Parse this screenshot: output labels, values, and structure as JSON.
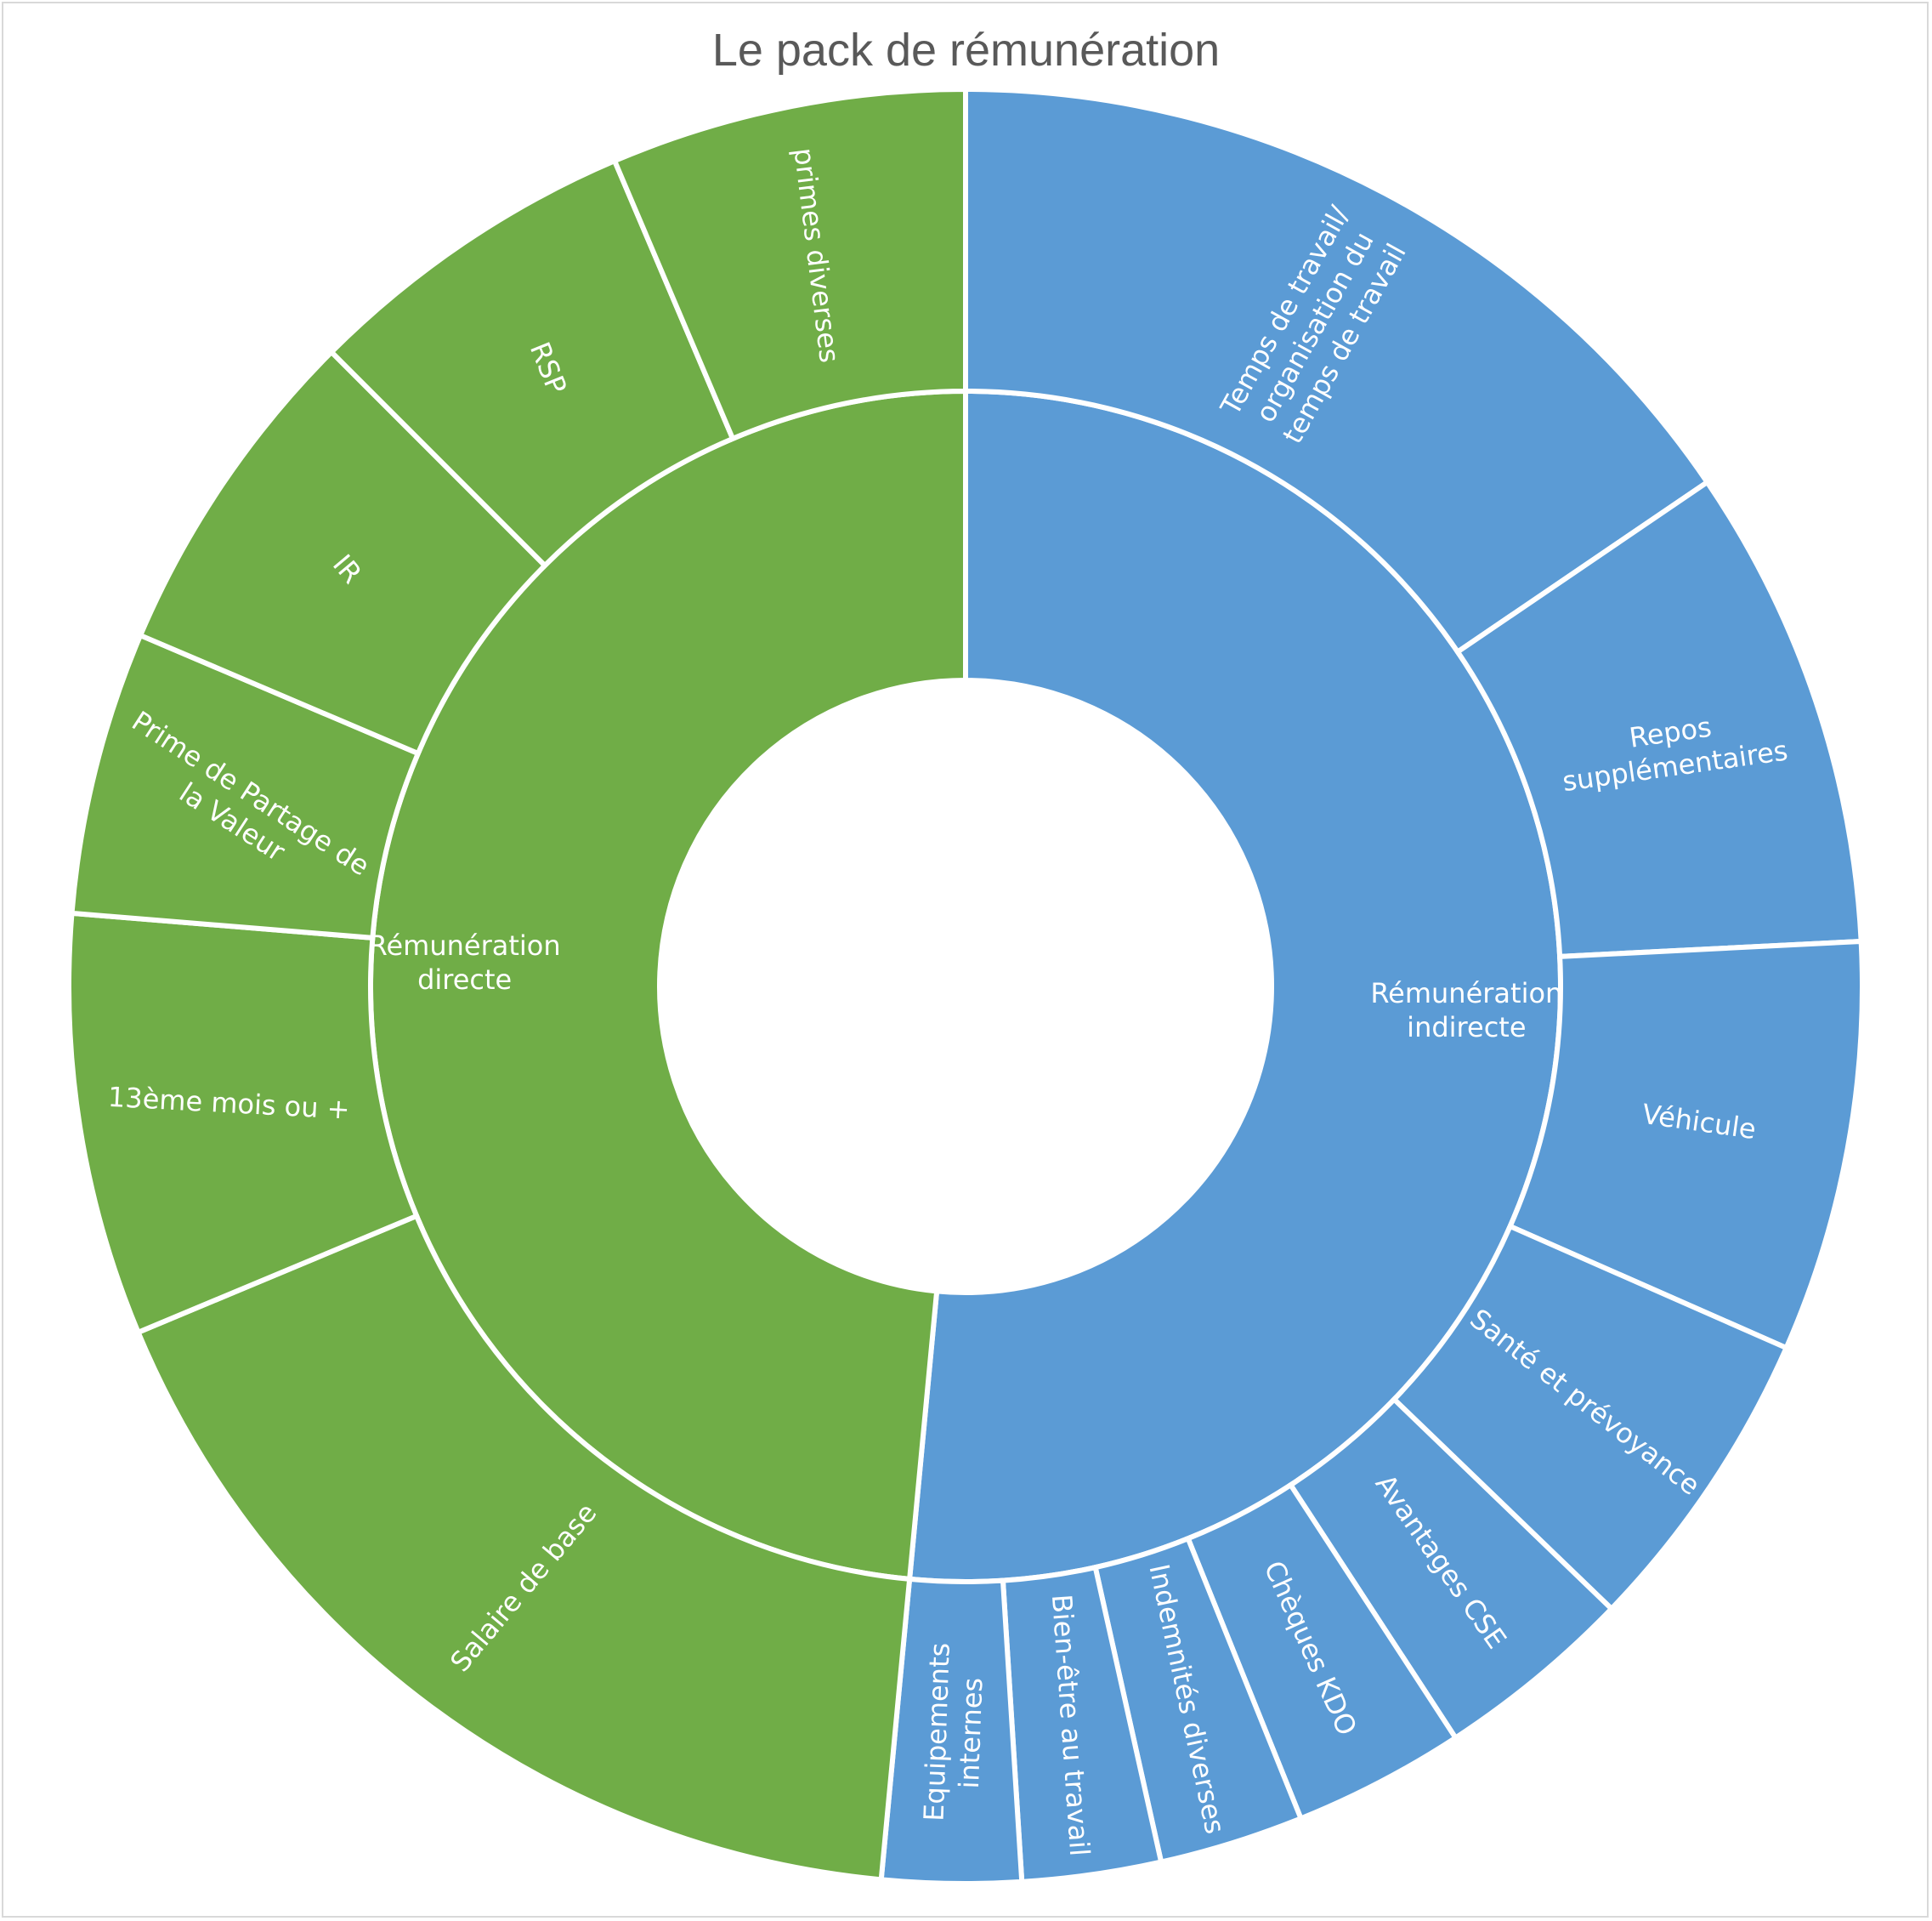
{
  "chart_data": {
    "type": "sunburst",
    "title": "Le pack de rémunération",
    "colors": {
      "directe": "#70ad47",
      "indirecte": "#5b9bd5",
      "separator": "#ffffff"
    },
    "rings": [
      {
        "level": 1,
        "segments": [
          {
            "label": "Rémunération indirecte",
            "value": 51.5,
            "color": "#5b9bd5"
          },
          {
            "label": "Rémunération directe",
            "value": 48.5,
            "color": "#70ad47"
          }
        ]
      },
      {
        "level": 2,
        "segments": [
          {
            "label": "Temps de travail/ organisation du temps de travail",
            "value": 15.5,
            "color": "#5b9bd5"
          },
          {
            "label": "Repos supplémentaires",
            "value": 8.7,
            "color": "#5b9bd5"
          },
          {
            "label": "Véhicule",
            "value": 7.4,
            "color": "#5b9bd5"
          },
          {
            "label": "Santé et prévoyance",
            "value": 5.6,
            "color": "#5b9bd5"
          },
          {
            "label": "Avantages CSE",
            "value": 3.6,
            "color": "#5b9bd5"
          },
          {
            "label": "Chèques KDO",
            "value": 3.1,
            "color": "#5b9bd5"
          },
          {
            "label": "Indemnités diverses",
            "value": 2.6,
            "color": "#5b9bd5"
          },
          {
            "label": "Bien-être au travail",
            "value": 2.5,
            "color": "#5b9bd5"
          },
          {
            "label": "Equipements internes",
            "value": 2.5,
            "color": "#5b9bd5"
          },
          {
            "label": "Salaire de base",
            "value": 17.2,
            "color": "#70ad47"
          },
          {
            "label": "13ème mois ou +",
            "value": 7.6,
            "color": "#70ad47"
          },
          {
            "label": "Prime de Partage de la Valeur",
            "value": 5.1,
            "color": "#70ad47"
          },
          {
            "label": "IR",
            "value": 6.1,
            "color": "#70ad47"
          },
          {
            "label": "RSP",
            "value": 6.1,
            "color": "#70ad47"
          },
          {
            "label": "primes diverses",
            "value": 6.4,
            "color": "#70ad47"
          }
        ]
      }
    ]
  }
}
